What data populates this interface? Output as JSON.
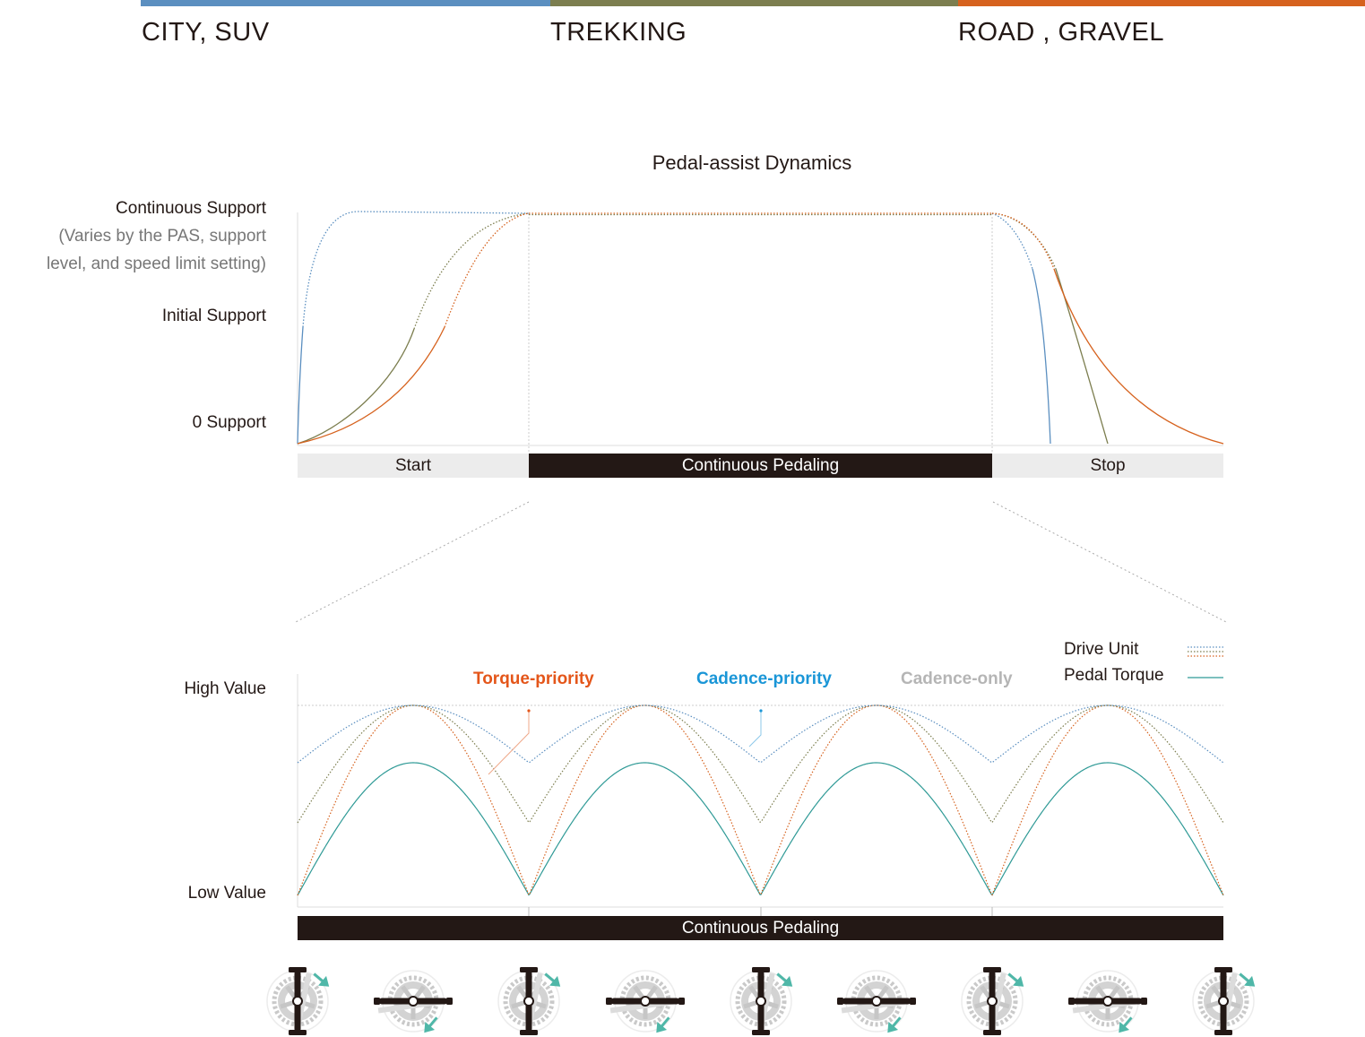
{
  "categories": [
    {
      "label": "CITY, SUV",
      "color": "#5b8fc0"
    },
    {
      "label": "TREKKING",
      "color": "#7c7e4f"
    },
    {
      "label": "ROAD , GRAVEL",
      "color": "#d6621e"
    }
  ],
  "top_chart": {
    "title": "Pedal-assist Dynamics",
    "y_labels": {
      "continuous": "Continuous Support",
      "note_1": "(Varies by the PAS, support",
      "note_2": "level, and speed limit setting)",
      "initial": "Initial Support",
      "zero": "0 Support"
    },
    "phases": [
      "Start",
      "Continuous Pedaling",
      "Stop"
    ]
  },
  "bottom_chart": {
    "y_labels": {
      "high": "High Value",
      "low": "Low Value"
    },
    "modes": [
      {
        "label": "Torque-priority",
        "color": "#e4561a"
      },
      {
        "label": "Cadence-priority",
        "color": "#1a96d7"
      },
      {
        "label": "Cadence-only",
        "color": "#b5b5b5"
      }
    ],
    "legend": {
      "drive_unit": "Drive Unit",
      "pedal_torque": "Pedal Torque"
    },
    "phase": "Continuous Pedaling"
  },
  "colors": {
    "blue": "#5b8fc0",
    "olive": "#7c7e4f",
    "orange": "#d6621e",
    "teal": "#2f9a96",
    "arrow": "#4fb7a8",
    "dark": "#231815"
  },
  "crank_icons": [
    "crank-vertical-icon",
    "crank-horizontal-icon",
    "crank-vertical-icon",
    "crank-horizontal-icon",
    "crank-vertical-icon",
    "crank-horizontal-icon",
    "crank-vertical-icon",
    "crank-horizontal-icon",
    "crank-vertical-icon"
  ]
}
